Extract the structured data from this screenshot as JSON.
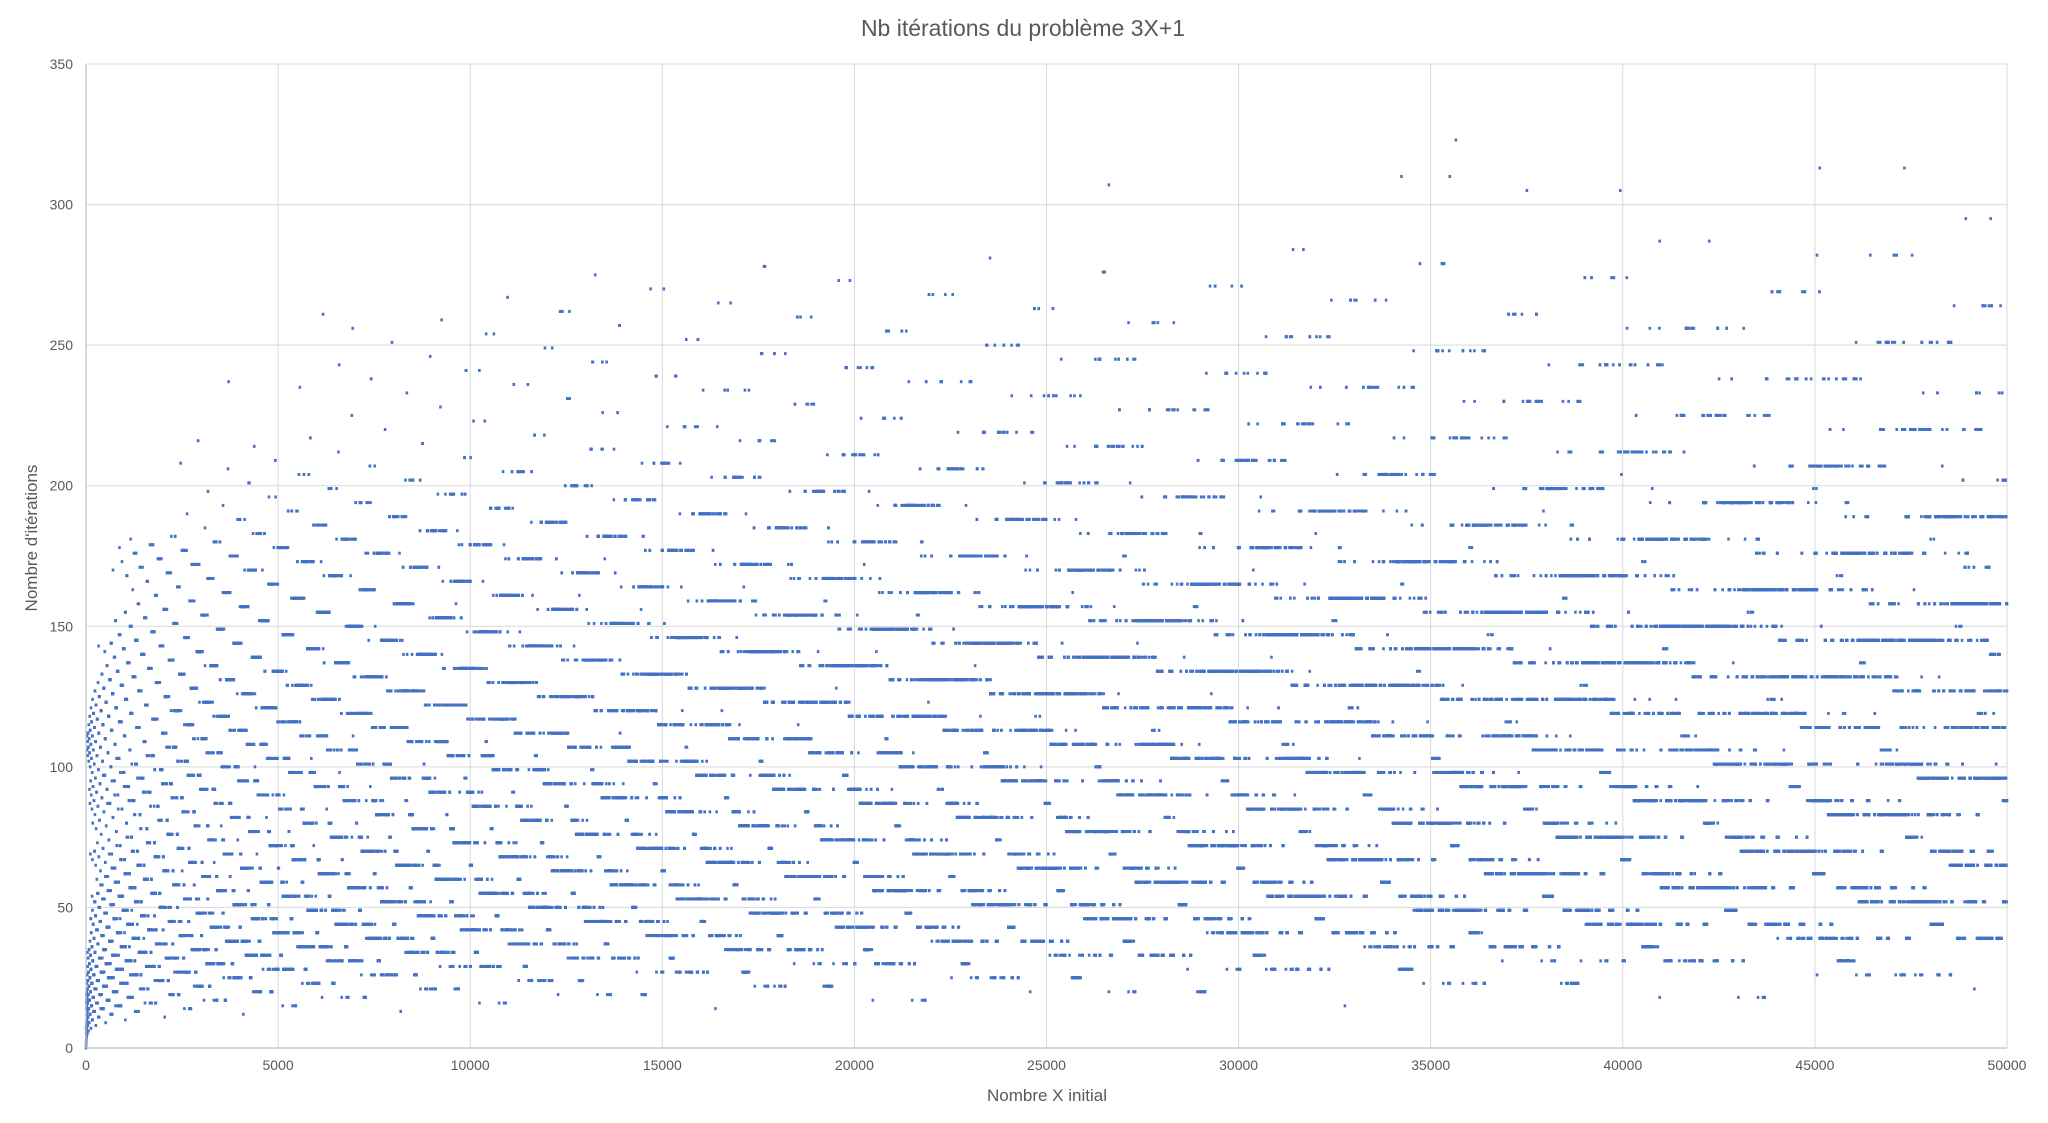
{
  "chart_data": {
    "type": "scatter",
    "title": "Nb itérations du problème 3X+1",
    "xlabel": "Nombre X initial",
    "ylabel": "Nombre d'itérations",
    "xlim": [
      0,
      50000
    ],
    "ylim": [
      0,
      350
    ],
    "x_ticks": [
      "0",
      "5000",
      "10000",
      "15000",
      "20000",
      "25000",
      "30000",
      "35000",
      "40000",
      "45000",
      "50000"
    ],
    "y_ticks": [
      "0",
      "50",
      "100",
      "150",
      "200",
      "250",
      "300",
      "350"
    ],
    "grid": true,
    "legend": "none",
    "series": [
      {
        "generator": "collatz_total_stopping_time",
        "x": [
          1,
          50000
        ],
        "marker_color": "#4472c4"
      }
    ]
  },
  "colors": {
    "marker": "#4472c4",
    "grid": "#d9d9d9",
    "axis": "#bfbfbf",
    "text": "#595959"
  }
}
